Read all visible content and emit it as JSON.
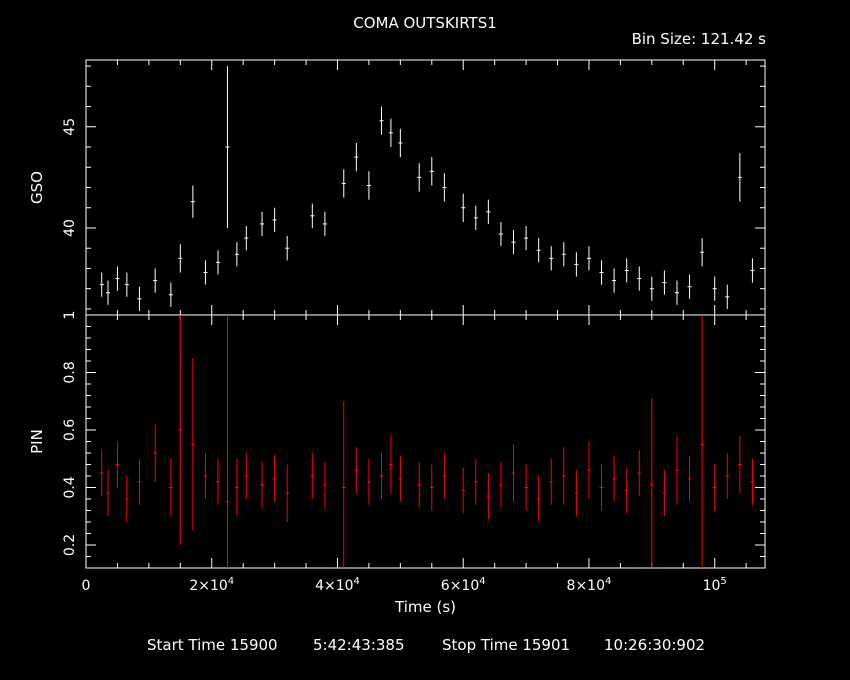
{
  "title": "COMA OUTSKIRTS1",
  "bin_size": "Bin Size: 121.42 s",
  "footer": {
    "start_label": "Start Time 15900",
    "start_value": "5:42:43:385",
    "stop_label": "Stop Time 15901",
    "stop_value": "10:26:30:902"
  },
  "colors": {
    "background": "#000000",
    "axes": "#ffffff",
    "gso": "#ffffff",
    "pin": "#ff0000"
  },
  "chart_data": [
    {
      "type": "scatter",
      "panel": "top",
      "title": "COMA OUTSKIRTS1",
      "xlabel": "",
      "ylabel": "GSO",
      "xlim": [
        0,
        108000
      ],
      "ylim": [
        35.7,
        48.3
      ],
      "yticks": [
        40,
        45
      ],
      "error_bars": true,
      "series": [
        {
          "name": "GSO",
          "x": [
            2500,
            3500,
            5000,
            6500,
            8500,
            11000,
            13500,
            15000,
            17000,
            19000,
            21000,
            22500,
            24000,
            25500,
            28000,
            30000,
            32000,
            36000,
            38000,
            41000,
            43000,
            45000,
            47000,
            48500,
            50000,
            53000,
            55000,
            57000,
            60000,
            62000,
            64000,
            66000,
            68000,
            70000,
            72000,
            74000,
            76000,
            78000,
            80000,
            82000,
            84000,
            86000,
            88000,
            90000,
            92000,
            94000,
            96000,
            98000,
            100000,
            102000,
            104000,
            106000
          ],
          "y": [
            37.2,
            36.8,
            37.5,
            37.2,
            36.5,
            37.4,
            36.7,
            38.5,
            41.3,
            37.8,
            38.3,
            44.0,
            38.7,
            39.5,
            40.2,
            40.4,
            39.0,
            40.6,
            40.2,
            42.2,
            43.5,
            42.1,
            45.3,
            44.7,
            44.2,
            42.5,
            42.8,
            42.0,
            41.0,
            40.5,
            40.8,
            39.7,
            39.3,
            39.5,
            38.9,
            38.5,
            38.7,
            38.2,
            38.5,
            37.8,
            37.4,
            37.9,
            37.5,
            37.0,
            37.3,
            36.8,
            37.1,
            38.8,
            37.0,
            36.6,
            42.5,
            37.9
          ],
          "yerr": [
            0.6,
            0.6,
            0.6,
            0.6,
            0.6,
            0.6,
            0.6,
            0.7,
            0.8,
            0.6,
            0.6,
            4.0,
            0.6,
            0.6,
            0.6,
            0.6,
            0.6,
            0.6,
            0.6,
            0.7,
            0.7,
            0.7,
            0.7,
            0.7,
            0.7,
            0.7,
            0.7,
            0.7,
            0.7,
            0.6,
            0.6,
            0.6,
            0.6,
            0.6,
            0.6,
            0.6,
            0.6,
            0.6,
            0.6,
            0.6,
            0.6,
            0.6,
            0.6,
            0.6,
            0.6,
            0.6,
            0.6,
            0.7,
            0.6,
            0.6,
            1.2,
            0.6
          ]
        }
      ]
    },
    {
      "type": "scatter",
      "panel": "bottom",
      "xlabel": "Time (s)",
      "ylabel": "PIN",
      "xlim": [
        0,
        108000
      ],
      "ylim": [
        0.12,
        1.0
      ],
      "yticks": [
        0.2,
        0.4,
        0.6,
        0.8,
        1
      ],
      "xticks": [
        0,
        20000,
        40000,
        60000,
        80000,
        100000
      ],
      "xticklabels": [
        "0",
        "2×10^4",
        "4×10^4",
        "6×10^4",
        "8×10^4",
        "10^5"
      ],
      "error_bars": true,
      "series": [
        {
          "name": "PIN",
          "x": [
            2500,
            3500,
            5000,
            6500,
            8500,
            11000,
            13500,
            15000,
            17000,
            19000,
            21000,
            22500,
            24000,
            25500,
            28000,
            30000,
            32000,
            36000,
            38000,
            41000,
            43000,
            45000,
            47000,
            48500,
            50000,
            53000,
            55000,
            57000,
            60000,
            62000,
            64000,
            66000,
            68000,
            70000,
            72000,
            74000,
            76000,
            78000,
            80000,
            82000,
            84000,
            86000,
            88000,
            90000,
            92000,
            94000,
            96000,
            98000,
            100000,
            102000,
            104000,
            106000
          ],
          "y": [
            0.45,
            0.38,
            0.48,
            0.36,
            0.42,
            0.52,
            0.4,
            0.6,
            0.55,
            0.44,
            0.42,
            0.35,
            0.4,
            0.44,
            0.41,
            0.43,
            0.38,
            0.44,
            0.41,
            0.4,
            0.46,
            0.42,
            0.44,
            0.48,
            0.43,
            0.41,
            0.4,
            0.44,
            0.39,
            0.42,
            0.37,
            0.41,
            0.45,
            0.4,
            0.36,
            0.42,
            0.44,
            0.38,
            0.46,
            0.4,
            0.43,
            0.39,
            0.45,
            0.41,
            0.38,
            0.46,
            0.43,
            0.55,
            0.4,
            0.44,
            0.48,
            0.42
          ],
          "yerr": [
            0.08,
            0.08,
            0.08,
            0.08,
            0.08,
            0.1,
            0.1,
            0.4,
            0.3,
            0.08,
            0.08,
            0.65,
            0.1,
            0.08,
            0.08,
            0.08,
            0.1,
            0.08,
            0.08,
            0.3,
            0.08,
            0.08,
            0.08,
            0.1,
            0.08,
            0.08,
            0.08,
            0.08,
            0.08,
            0.08,
            0.08,
            0.08,
            0.1,
            0.08,
            0.08,
            0.08,
            0.1,
            0.08,
            0.1,
            0.08,
            0.08,
            0.08,
            0.08,
            0.3,
            0.08,
            0.12,
            0.08,
            0.45,
            0.08,
            0.08,
            0.1,
            0.08
          ]
        }
      ]
    }
  ]
}
